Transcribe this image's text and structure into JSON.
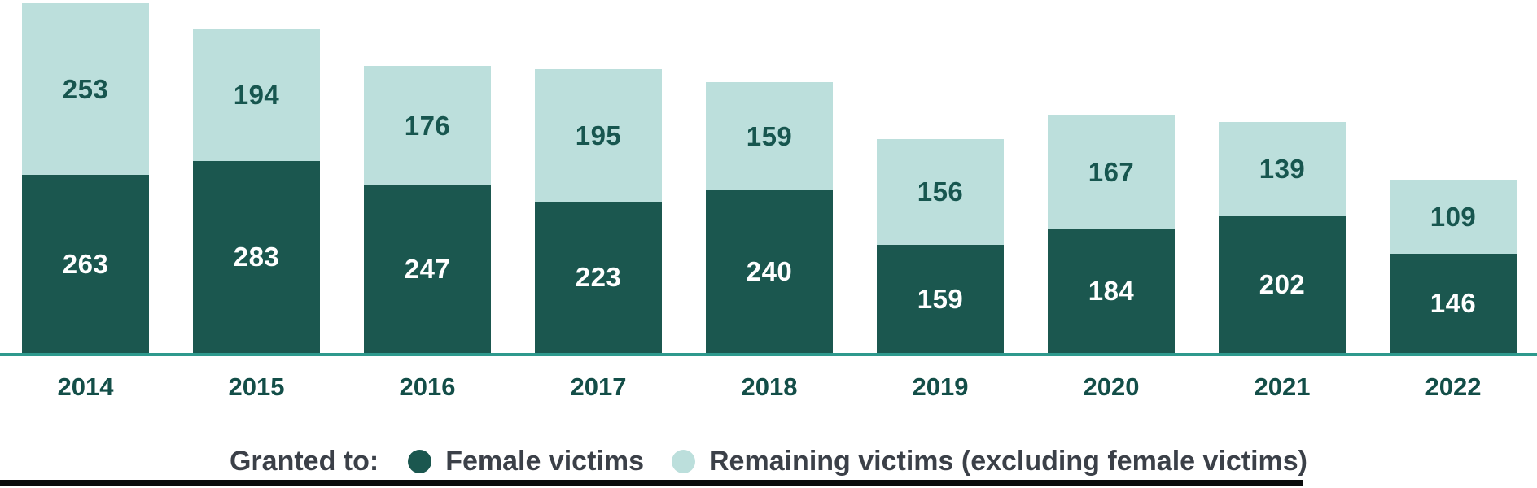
{
  "chart_data": {
    "type": "bar",
    "stacked": true,
    "orientation": "vertical",
    "categories": [
      "2014",
      "2015",
      "2016",
      "2017",
      "2018",
      "2019",
      "2020",
      "2021",
      "2022"
    ],
    "series": [
      {
        "name": "Female victims",
        "color": "#1B574F",
        "label_color": "#FFFFFF",
        "values": [
          263,
          283,
          247,
          223,
          240,
          159,
          184,
          202,
          146
        ]
      },
      {
        "name": "Remaining victims (excluding female victims)",
        "color": "#BCDFDC",
        "label_color": "#17564F",
        "values": [
          253,
          194,
          176,
          195,
          159,
          156,
          167,
          139,
          109
        ]
      }
    ],
    "legend_title": "Granted to:",
    "legend_position": "bottom-center",
    "data_labels": true,
    "grid": false,
    "ylim": [
      0,
      516
    ],
    "axis_line_color": "#2E998D",
    "x_tick_color": "#134E48",
    "legend_text_color": "#3B4048",
    "bottom_rule_color": "#0B0C0D",
    "background_color": "#FFFFFF"
  }
}
